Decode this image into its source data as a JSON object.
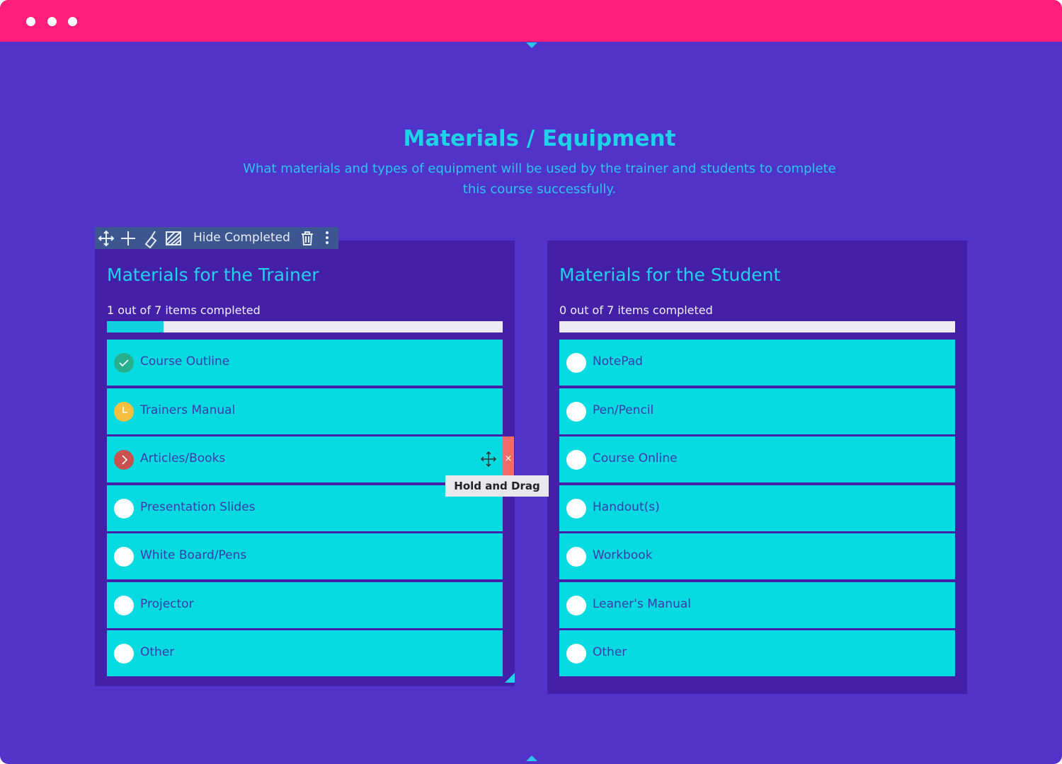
{
  "header": {
    "title": "Materials / Equipment",
    "subtitle": "What materials and types of equipment will be used by the trainer and students to complete this course successfully."
  },
  "toolbar": {
    "label": "Hide Completed"
  },
  "tooltip": "Hold and Drag",
  "lists": [
    {
      "title": "Materials for the Trainer",
      "progress": "1 out of 7 items completed",
      "items": [
        {
          "label": "Course Outline",
          "status": "done"
        },
        {
          "label": "Trainers Manual",
          "status": "in-progress"
        },
        {
          "label": "Articles/Books",
          "status": "blocked"
        },
        {
          "label": "Presentation Slides",
          "status": "open"
        },
        {
          "label": "White Board/Pens",
          "status": "open"
        },
        {
          "label": "Projector",
          "status": "open"
        },
        {
          "label": "Other",
          "status": "open"
        }
      ]
    },
    {
      "title": "Materials for the Student",
      "progress": "0 out of 7 items completed",
      "items": [
        {
          "label": "NotePad",
          "status": "open"
        },
        {
          "label": "Pen/Pencil",
          "status": "open"
        },
        {
          "label": "Course Online",
          "status": "open"
        },
        {
          "label": "Handout(s)",
          "status": "open"
        },
        {
          "label": "Workbook",
          "status": "open"
        },
        {
          "label": "Leaner's Manual",
          "status": "open"
        },
        {
          "label": "Other",
          "status": "open"
        }
      ]
    }
  ]
}
